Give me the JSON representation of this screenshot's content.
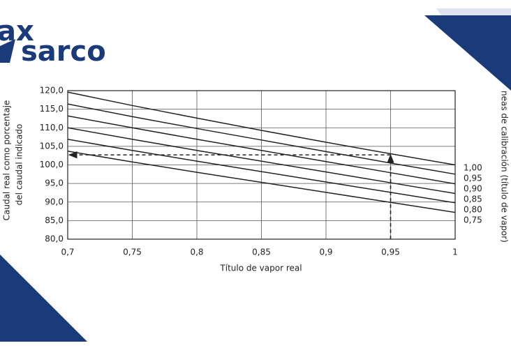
{
  "logo": {
    "line1": "ax",
    "line2": "sarco"
  },
  "chart_data": {
    "type": "line",
    "y_label": [
      "Caudal real como porcentaje",
      "del caudal indicado"
    ],
    "x_label": "Título de vapor real",
    "right_label": "neas de calibración (título de vapor)",
    "x": [
      0.7,
      0.75,
      0.8,
      0.85,
      0.9,
      0.95,
      1
    ],
    "xlim": [
      0.7,
      1
    ],
    "xticks": [
      {
        "value": 0.7,
        "label": "0,7"
      },
      {
        "value": 0.75,
        "label": "0,75"
      },
      {
        "value": 0.8,
        "label": "0,8"
      },
      {
        "value": 0.85,
        "label": "0,85"
      },
      {
        "value": 0.9,
        "label": "0,9"
      },
      {
        "value": 0.95,
        "label": "0,95"
      },
      {
        "value": 1,
        "label": "1"
      }
    ],
    "ylim": [
      80,
      120
    ],
    "yticks": [
      {
        "value": 80,
        "label": "80,0"
      },
      {
        "value": 85,
        "label": "85,0"
      },
      {
        "value": 90,
        "label": "90,0"
      },
      {
        "value": 95,
        "label": "95,0"
      },
      {
        "value": 100,
        "label": "100,0"
      },
      {
        "value": 105,
        "label": "105,0"
      },
      {
        "value": 110,
        "label": "110,0"
      },
      {
        "value": 115,
        "label": "115,0"
      },
      {
        "value": 120,
        "label": "120,0"
      }
    ],
    "grid": true,
    "series": [
      {
        "name": "1,00",
        "color": "#222222",
        "values": [
          119.6,
          116.0,
          112.6,
          109.3,
          106.1,
          103.0,
          100.0
        ]
      },
      {
        "name": "0,95",
        "color": "#222222",
        "values": [
          116.4,
          113.0,
          109.8,
          106.7,
          103.6,
          100.5,
          97.5
        ]
      },
      {
        "name": "0,90",
        "color": "#222222",
        "values": [
          113.2,
          110.0,
          106.9,
          103.9,
          100.9,
          97.9,
          94.9
        ]
      },
      {
        "name": "0,85",
        "color": "#222222",
        "values": [
          110.0,
          106.9,
          103.9,
          101.0,
          98.1,
          95.2,
          92.3
        ]
      },
      {
        "name": "0,80",
        "color": "#222222",
        "values": [
          106.9,
          103.9,
          101.0,
          98.2,
          95.4,
          92.6,
          89.8
        ]
      },
      {
        "name": "0,75",
        "color": "#222222",
        "values": [
          103.7,
          100.8,
          98.0,
          95.3,
          92.6,
          89.9,
          87.2
        ]
      }
    ],
    "annotation": {
      "x": 0.95,
      "y": 102.7
    }
  }
}
